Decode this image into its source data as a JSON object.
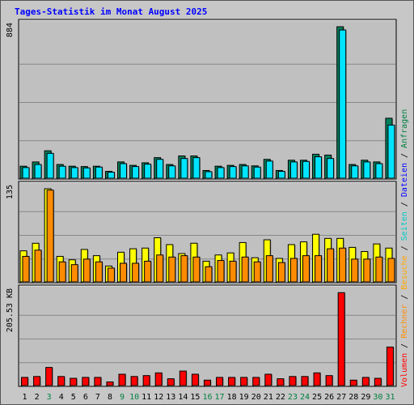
{
  "title": "Tages-Statistik im Monat August 2025",
  "colors": {
    "anfragen": "#00e4ff",
    "anfragen_dark": "#00805c",
    "dateien": "#00e4ff",
    "seiten": "#ffff00",
    "besuche": "#ff8c00",
    "rechner": "#ff8c00",
    "volumen": "#ff0000",
    "weekday_label": "#000000",
    "weekend_label": "#008040",
    "panel_bg": "#c0c0c0",
    "grid": "#888888"
  },
  "side_labels": [
    {
      "text": "Volumen",
      "color": "#ff0000"
    },
    {
      "text": " / ",
      "color": "#000000"
    },
    {
      "text": "Rechner",
      "color": "#ff8c00"
    },
    {
      "text": " / ",
      "color": "#000000"
    },
    {
      "text": "Besuche",
      "color": "#ffa500"
    },
    {
      "text": " / ",
      "color": "#000000"
    },
    {
      "text": "Seiten",
      "color": "#00c8c8"
    },
    {
      "text": " / ",
      "color": "#000000"
    },
    {
      "text": "Dateien",
      "color": "#0000ff"
    },
    {
      "text": " / ",
      "color": "#000000"
    },
    {
      "text": "Anfragen",
      "color": "#008040"
    }
  ],
  "chart_data": {
    "type": "bar",
    "days": [
      "1",
      "2",
      "3",
      "4",
      "5",
      "6",
      "7",
      "8",
      "9",
      "10",
      "11",
      "12",
      "13",
      "14",
      "15",
      "16",
      "17",
      "18",
      "19",
      "20",
      "21",
      "22",
      "23",
      "24",
      "25",
      "26",
      "27",
      "28",
      "29",
      "30",
      "31"
    ],
    "weekend_days": [
      3,
      9,
      10,
      16,
      17,
      23,
      24,
      30,
      31
    ],
    "panels": [
      {
        "max_label": "884",
        "max": 884,
        "series": [
          {
            "name": "Anfragen",
            "values": [
              70,
              95,
              160,
              80,
              70,
              68,
              70,
              40,
              95,
              75,
              90,
              120,
              80,
              130,
              130,
              45,
              70,
              75,
              80,
              72,
              110,
              45,
              105,
              105,
              140,
              135,
              884,
              80,
              105,
              95,
              350
            ]
          },
          {
            "name": "Dateien",
            "values": [
              62,
              80,
              145,
              70,
              62,
              60,
              65,
              35,
              85,
              68,
              82,
              110,
              72,
              115,
              120,
              38,
              62,
              68,
              72,
              65,
              100,
              40,
              95,
              98,
              125,
              115,
              865,
              72,
              95,
              85,
              310
            ]
          }
        ]
      },
      {
        "max_label": "135",
        "max": 135,
        "series": [
          {
            "name": "Seiten",
            "values": [
              45,
              56,
              135,
              37,
              32,
              47,
              38,
              23,
              43,
              48,
              49,
              64,
              54,
              41,
              56,
              30,
              39,
              42,
              57,
              35,
              61,
              34,
              54,
              58,
              69,
              63,
              63,
              50,
              44,
              55,
              49
            ]
          },
          {
            "name": "Besuche",
            "values": [
              37,
              46,
              133,
              29,
              25,
              33,
              29,
              20,
              27,
              27,
              30,
              39,
              36,
              38,
              36,
              22,
              31,
              30,
              36,
              29,
              38,
              28,
              34,
              38,
              38,
              48,
              49,
              33,
              33,
              36,
              34
            ]
          }
        ]
      },
      {
        "max_label": "205.53 KB",
        "max": 205.53,
        "series": [
          {
            "name": "Volumen",
            "values": [
              18,
              20,
              40,
              20,
              16,
              18,
              18,
              8,
              25,
              20,
              22,
              28,
              15,
              32,
              25,
              12,
              18,
              18,
              18,
              18,
              25,
              15,
              20,
              20,
              28,
              22,
              205,
              12,
              18,
              16,
              85
            ]
          }
        ]
      }
    ]
  }
}
